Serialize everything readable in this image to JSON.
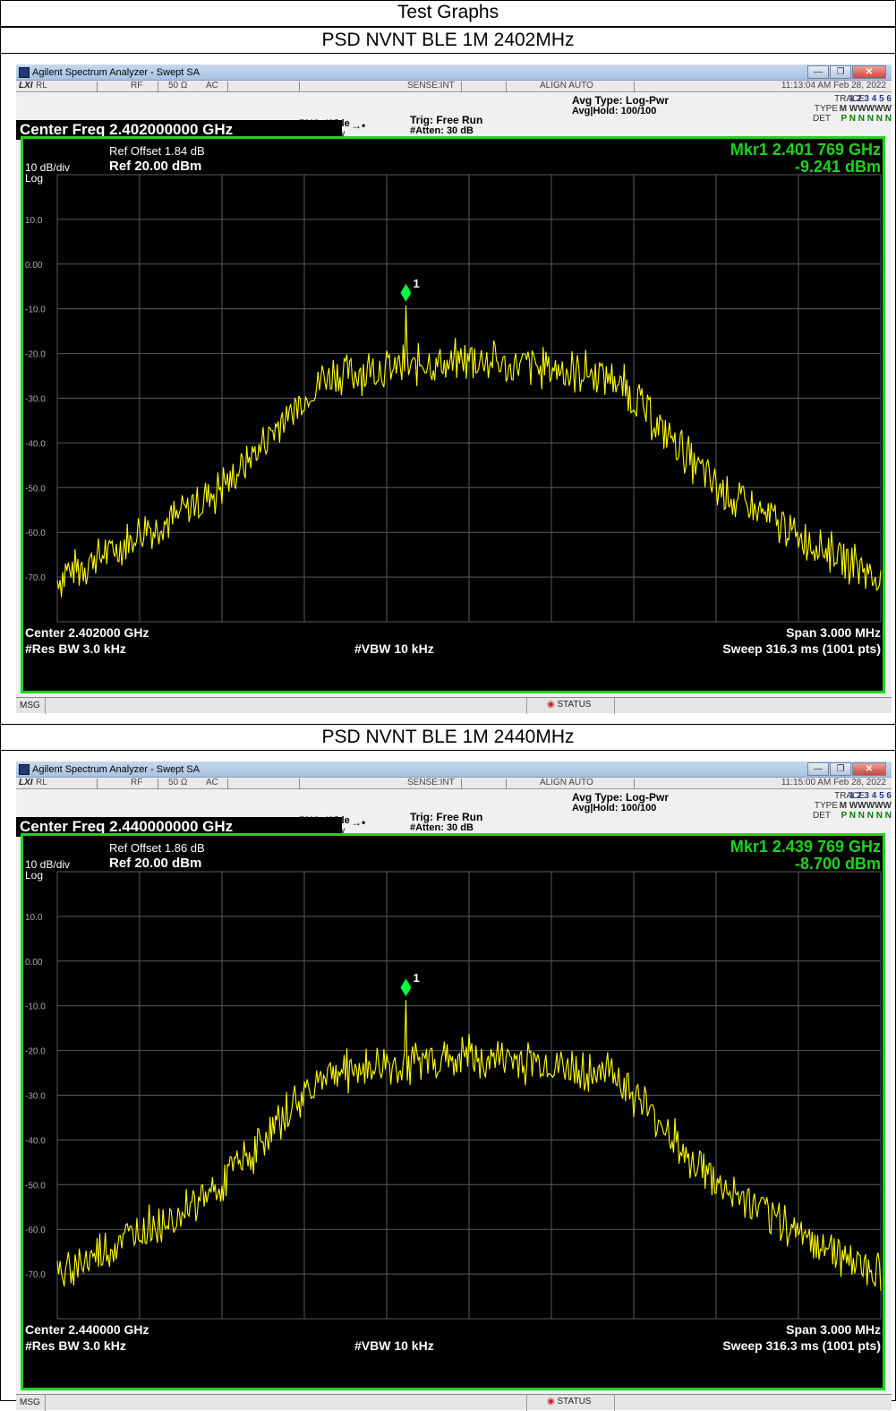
{
  "page_title": "Test Graphs",
  "panels": [
    {
      "heading": "PSD NVNT BLE 1M 2402MHz",
      "window_title": "Agilent Spectrum Analyzer - Swept SA",
      "status_rl": "RL",
      "status_rf": "RF",
      "status_ohm": "50 Ω",
      "status_ac": "AC",
      "sense": "SENSE:INT",
      "align": "ALIGN AUTO",
      "datetime": "11:13:04 AM Feb 28, 2022",
      "center_freq": "Center Freq 2.402000000 GHz",
      "pno": "PNO: Wide",
      "ifgain": "IFGain:Low",
      "trig": "Trig: Free Run",
      "atten": "#Atten: 30 dB",
      "avg_type": "Avg Type: Log-Pwr",
      "avg_hold": "Avg|Hold: 100/100",
      "trace_label": "TRACE",
      "type_label": "TYPE",
      "det_label": "DET",
      "trace_nums": "1 2 3 4 5 6",
      "type_vals": "M WWWWW",
      "det_vals": "P N N N N N",
      "ref_offset": "Ref Offset 1.84 dB",
      "scale": "10 dB/div",
      "ref_level": "Ref 20.00 dBm",
      "log": "Log",
      "mkr_freq": "Mkr1 2.401 769 GHz",
      "mkr_level": "-9.241 dBm",
      "marker_label": "1",
      "bottom_center": "Center 2.402000 GHz",
      "bottom_rbw": "#Res BW 3.0 kHz",
      "bottom_vbw": "#VBW 10 kHz",
      "bottom_span": "Span 3.000 MHz",
      "bottom_sweep": "Sweep  316.3 ms (1001 pts)",
      "msg": "MSG",
      "status": "STATUS",
      "peak_dbm": -9.241,
      "seed": 7
    },
    {
      "heading": "PSD NVNT BLE 1M 2440MHz",
      "window_title": "Agilent Spectrum Analyzer - Swept SA",
      "status_rl": "RL",
      "status_rf": "RF",
      "status_ohm": "50 Ω",
      "status_ac": "AC",
      "sense": "SENSE:INT",
      "align": "ALIGN AUTO",
      "datetime": "11:15:00 AM Feb 28, 2022",
      "center_freq": "Center Freq 2.440000000 GHz",
      "pno": "PNO: Wide",
      "ifgain": "IFGain:Low",
      "trig": "Trig: Free Run",
      "atten": "#Atten: 30 dB",
      "avg_type": "Avg Type: Log-Pwr",
      "avg_hold": "Avg|Hold: 100/100",
      "trace_label": "TRACE",
      "type_label": "TYPE",
      "det_label": "DET",
      "trace_nums": "1 2 3 4 5 6",
      "type_vals": "M WWWWW",
      "det_vals": "P N N N N N",
      "ref_offset": "Ref Offset 1.86 dB",
      "scale": "10 dB/div",
      "ref_level": "Ref 20.00 dBm",
      "log": "Log",
      "mkr_freq": "Mkr1 2.439 769 GHz",
      "mkr_level": "-8.700 dBm",
      "marker_label": "1",
      "bottom_center": "Center 2.440000 GHz",
      "bottom_rbw": "#Res BW 3.0 kHz",
      "bottom_vbw": "#VBW 10 kHz",
      "bottom_span": "Span 3.000 MHz",
      "bottom_sweep": "Sweep  316.3 ms (1001 pts)",
      "msg": "MSG",
      "status": "STATUS",
      "peak_dbm": -8.7,
      "seed": 19
    }
  ],
  "y_ticks": [
    "10.0",
    "0.00",
    "-10.0",
    "-20.0",
    "-30.0",
    "-40.0",
    "-50.0",
    "-60.0",
    "-70.0"
  ],
  "colors": {
    "trace": "#ffff00",
    "marker": "#00ff40",
    "screen_border": "#1fd31f",
    "grid": "#5a5a5a",
    "mkr_text": "#1fd31f"
  }
}
